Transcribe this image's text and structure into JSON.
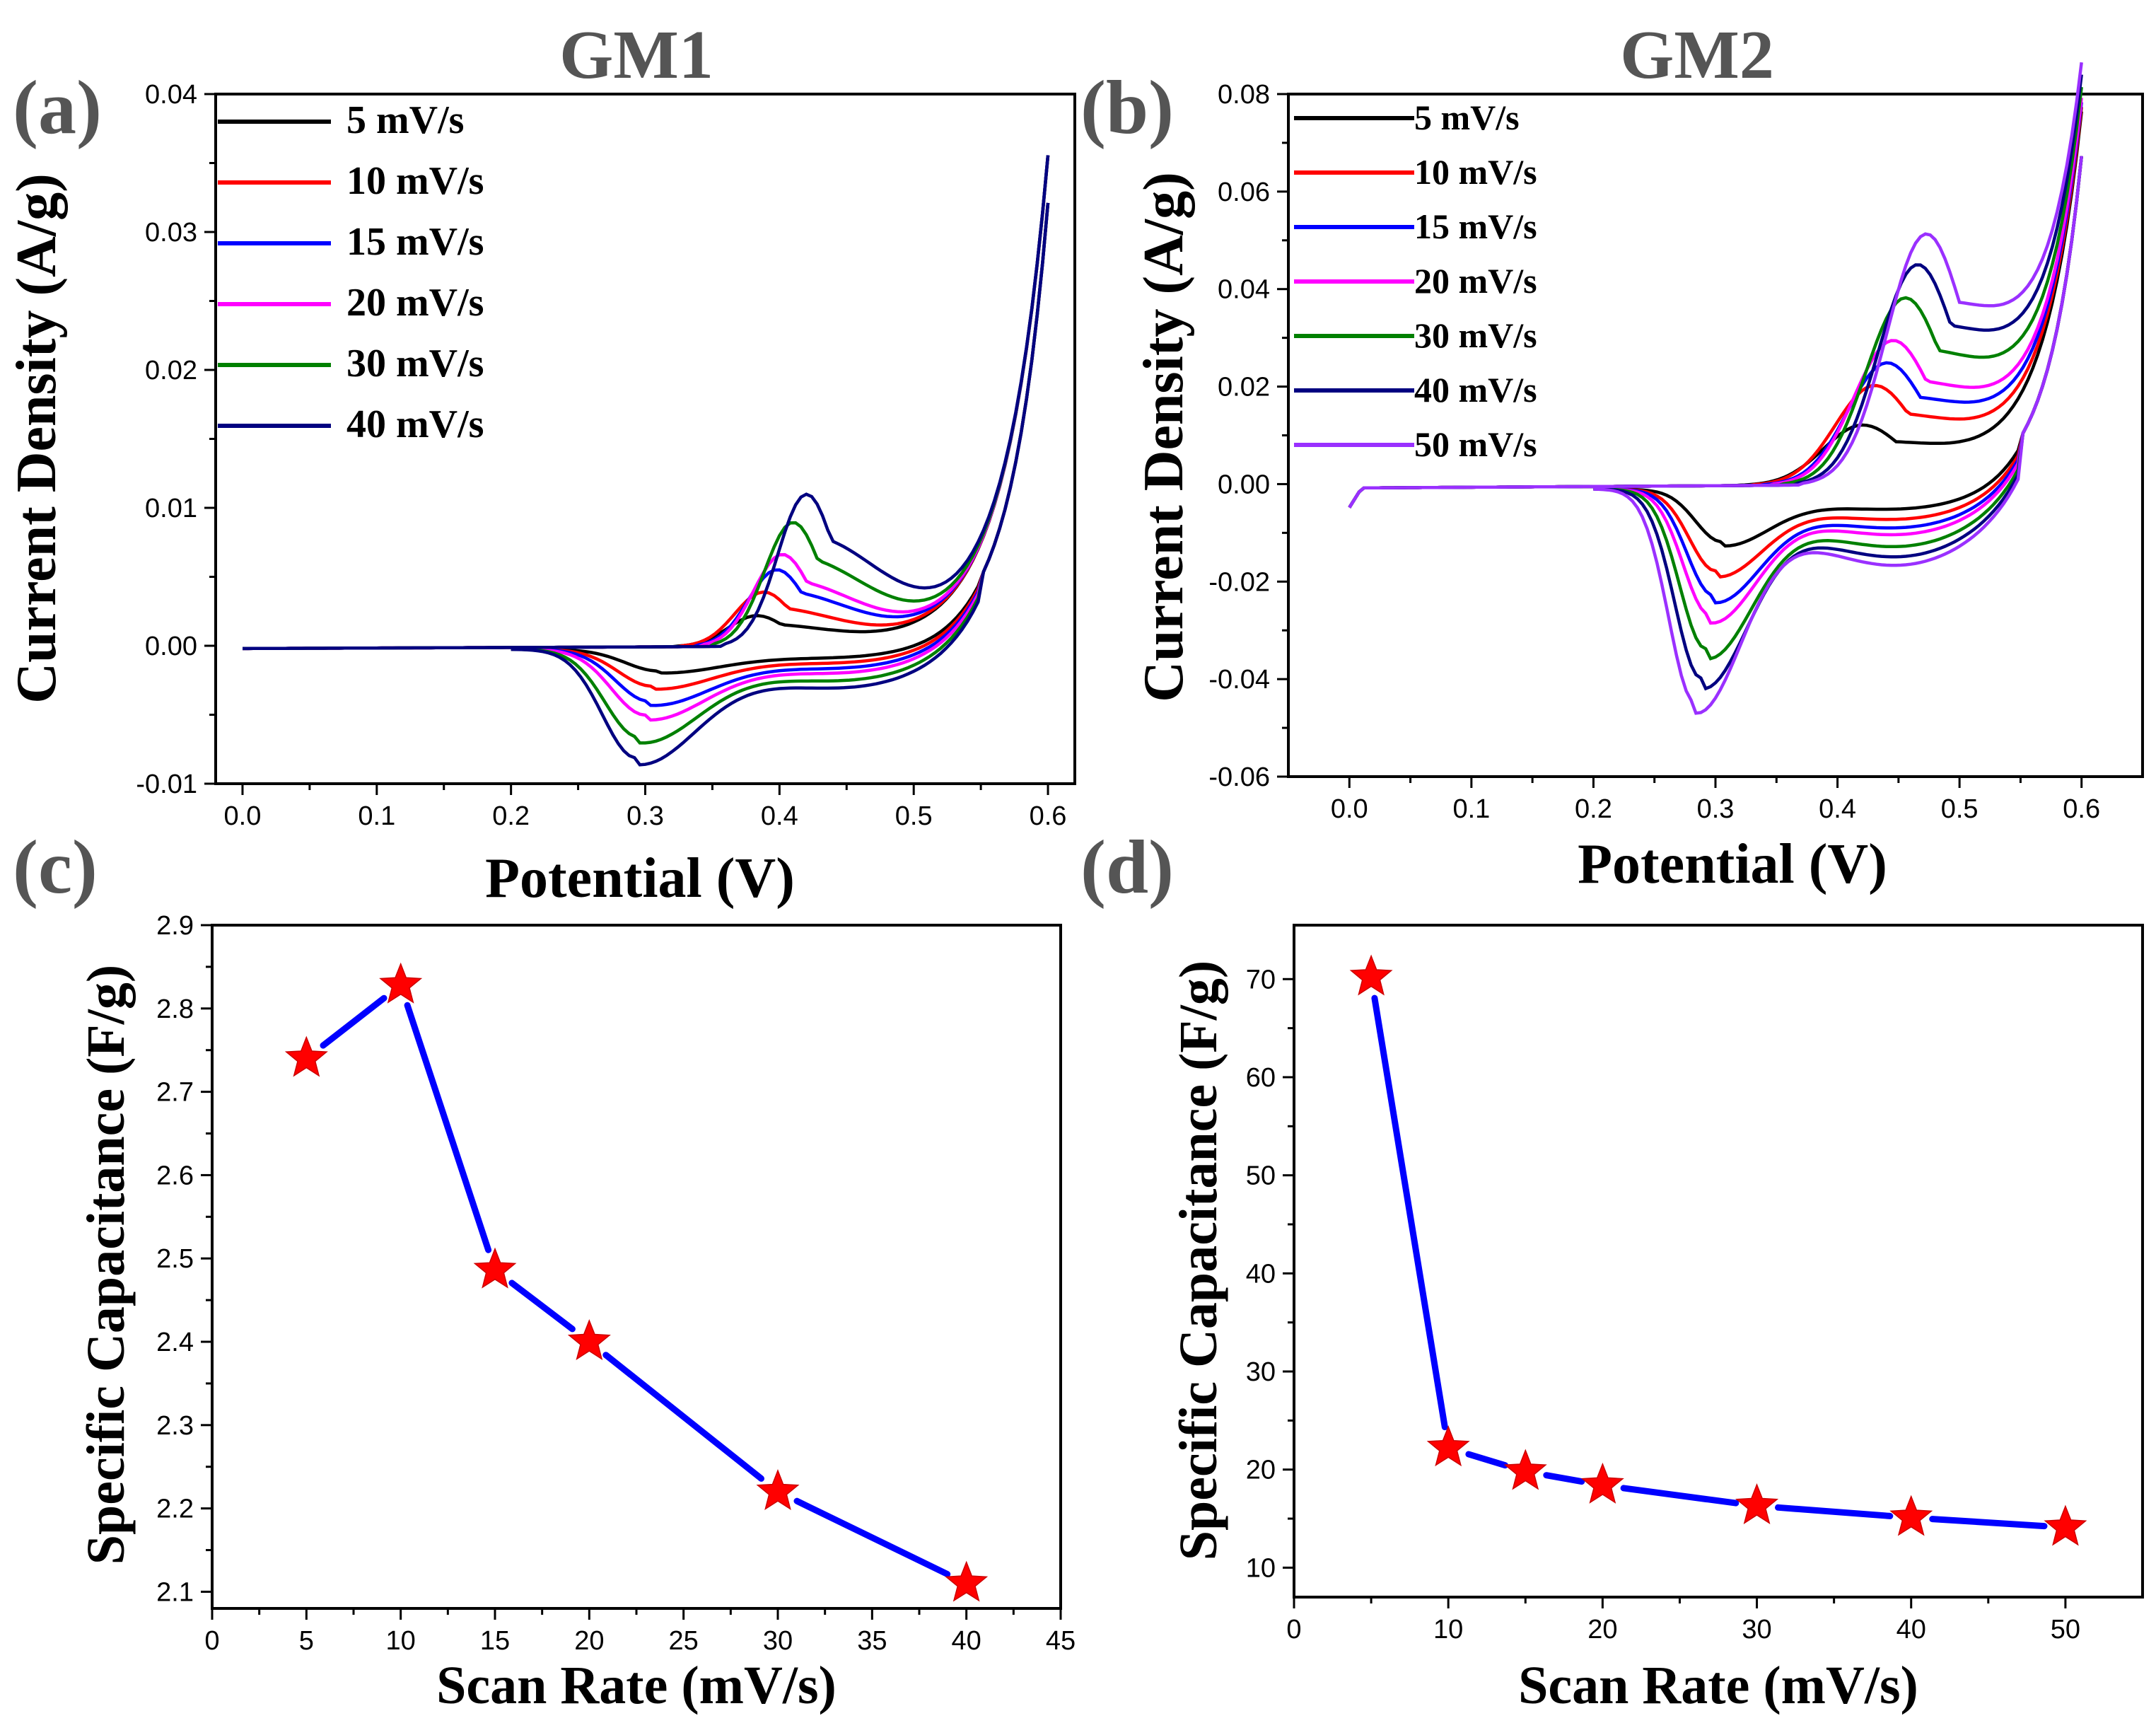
{
  "titles": {
    "a": "GM1",
    "b": "GM2"
  },
  "panel_letters": {
    "a": "(a)",
    "b": "(b)",
    "c": "(c)",
    "d": "(d)"
  },
  "chart_data": [
    {
      "id": "a",
      "type": "line",
      "title": "GM1",
      "xlabel": "Potential  (V)",
      "ylabel": "Current Density (A/g)",
      "xlim": [
        -0.02,
        0.62
      ],
      "ylim": [
        -0.01,
        0.04
      ],
      "xticks": [
        0.0,
        0.1,
        0.2,
        0.3,
        0.4,
        0.5,
        0.6
      ],
      "xtick_labels": [
        "0.0",
        "0.1",
        "0.2",
        "0.3",
        "0.4",
        "0.5",
        "0.6"
      ],
      "yticks": [
        -0.01,
        0.0,
        0.01,
        0.02,
        0.03,
        0.04
      ],
      "ytick_labels": [
        "-0.01",
        "0.00",
        "0.01",
        "0.02",
        "0.03",
        "0.04"
      ],
      "legend_position": "top-left",
      "series": [
        {
          "name": "5 mV/s",
          "color": "#000000",
          "ox_peak": [
            0.383,
            0.0022
          ],
          "red_peak": [
            0.31,
            -0.0015
          ]
        },
        {
          "name": "10 mV/s",
          "color": "#ff0000",
          "ox_peak": [
            0.388,
            0.0039
          ],
          "red_peak": [
            0.305,
            -0.0026
          ]
        },
        {
          "name": "15 mV/s",
          "color": "#0000ff",
          "ox_peak": [
            0.398,
            0.0055
          ],
          "red_peak": [
            0.303,
            -0.0037
          ]
        },
        {
          "name": "20 mV/s",
          "color": "#ff00ff",
          "ox_peak": [
            0.402,
            0.0066
          ],
          "red_peak": [
            0.3,
            -0.0047
          ]
        },
        {
          "name": "30 mV/s",
          "color": "#008000",
          "ox_peak": [
            0.41,
            0.0089
          ],
          "red_peak": [
            0.295,
            -0.0063
          ]
        },
        {
          "name": "40 mV/s",
          "color": "#000080",
          "ox_peak": [
            0.42,
            0.0109
          ],
          "red_peak": [
            0.293,
            -0.0078
          ]
        }
      ],
      "end_point": [
        0.6,
        0.0355
      ]
    },
    {
      "id": "b",
      "type": "line",
      "title": "GM2",
      "xlabel": "Potential  (V)",
      "ylabel": "Current Density (A/g)",
      "xlim": [
        -0.05,
        0.65
      ],
      "ylim": [
        -0.06,
        0.08
      ],
      "xticks": [
        0.0,
        0.1,
        0.2,
        0.3,
        0.4,
        0.5,
        0.6
      ],
      "xtick_labels": [
        "0.0",
        "0.1",
        "0.2",
        "0.3",
        "0.4",
        "0.5",
        "0.6"
      ],
      "yticks": [
        -0.06,
        -0.04,
        -0.02,
        0.0,
        0.02,
        0.04,
        0.06,
        0.08
      ],
      "ytick_labels": [
        "-0.06",
        "-0.04",
        "-0.02",
        "0.00",
        "0.02",
        "0.04",
        "0.06",
        "0.08"
      ],
      "legend_position": "top-left",
      "series": [
        {
          "name": "5 mV/s",
          "color": "#000000",
          "ox_peak": [
            0.42,
            0.012
          ],
          "red_peak": [
            0.305,
            -0.0105
          ]
        },
        {
          "name": "10 mV/s",
          "color": "#ff0000",
          "ox_peak": [
            0.43,
            0.02
          ],
          "red_peak": [
            0.3,
            -0.0165
          ]
        },
        {
          "name": "15 mV/s",
          "color": "#0000ff",
          "ox_peak": [
            0.44,
            0.0245
          ],
          "red_peak": [
            0.298,
            -0.0215
          ]
        },
        {
          "name": "20 mV/s",
          "color": "#ff00ff",
          "ox_peak": [
            0.445,
            0.029
          ],
          "red_peak": [
            0.295,
            -0.0255
          ]
        },
        {
          "name": "30 mV/s",
          "color": "#008000",
          "ox_peak": [
            0.455,
            0.0375
          ],
          "red_peak": [
            0.292,
            -0.0325
          ]
        },
        {
          "name": "40 mV/s",
          "color": "#000080",
          "ox_peak": [
            0.465,
            0.044
          ],
          "red_peak": [
            0.288,
            -0.0385
          ]
        },
        {
          "name": "50 mV/s",
          "color": "#9a30ff",
          "ox_peak": [
            0.472,
            0.05
          ],
          "red_peak": [
            0.283,
            -0.0435
          ]
        }
      ],
      "end_point": [
        0.6,
        0.0755
      ]
    },
    {
      "id": "c",
      "type": "line",
      "xlabel": "Scan Rate (mV/s)",
      "ylabel": "Specific Capacitance (F/g)",
      "xlim": [
        0,
        45
      ],
      "ylim": [
        2.08,
        2.9
      ],
      "xticks": [
        0,
        5,
        10,
        15,
        20,
        25,
        30,
        35,
        40,
        45
      ],
      "xtick_labels": [
        "0",
        "5",
        "10",
        "15",
        "20",
        "25",
        "30",
        "35",
        "40",
        "45"
      ],
      "yticks": [
        2.1,
        2.2,
        2.3,
        2.4,
        2.5,
        2.6,
        2.7,
        2.8,
        2.9
      ],
      "ytick_labels": [
        "2.1",
        "2.2",
        "2.3",
        "2.4",
        "2.5",
        "2.6",
        "2.7",
        "2.8",
        "2.9"
      ],
      "x": [
        5,
        10,
        15,
        20,
        30,
        40
      ],
      "y": [
        2.74,
        2.828,
        2.486,
        2.4,
        2.22,
        2.11
      ],
      "line_color": "#0000ff",
      "marker_color": "#ff0000"
    },
    {
      "id": "d",
      "type": "line",
      "xlabel": "Scan Rate (mV/s)",
      "ylabel": "Specific Capacitance (F/g)",
      "xlim": [
        0,
        55
      ],
      "ylim": [
        7,
        75.5
      ],
      "xticks": [
        0,
        10,
        20,
        30,
        40,
        50
      ],
      "xtick_labels": [
        "0",
        "10",
        "20",
        "30",
        "40",
        "50"
      ],
      "yticks": [
        10,
        20,
        30,
        40,
        50,
        60,
        70
      ],
      "ytick_labels": [
        "10",
        "20",
        "30",
        "40",
        "50",
        "60",
        "70"
      ],
      "x": [
        5,
        10,
        15,
        20,
        30,
        40,
        50
      ],
      "y": [
        70.2,
        22.2,
        19.8,
        18.4,
        16.3,
        15.1,
        14.1
      ],
      "line_color": "#0000ff",
      "marker_color": "#ff0000"
    }
  ]
}
